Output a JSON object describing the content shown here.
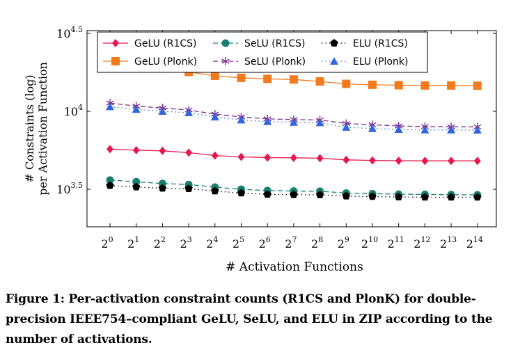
{
  "chart_data": {
    "type": "line",
    "xlabel": "# Activation Functions",
    "ylabel_lines": [
      "# Constraints (log)",
      "per Activation Function"
    ],
    "yscale": "log",
    "ylim_log10": [
      3.3,
      4.5
    ],
    "y_ticks": [
      {
        "log10": 3.5,
        "base": "10",
        "exp": "3.5"
      },
      {
        "log10": 4.0,
        "base": "10",
        "exp": "4"
      },
      {
        "log10": 4.5,
        "base": "10",
        "exp": "4.5"
      }
    ],
    "x_ticks": [
      {
        "base": "2",
        "exp": "0"
      },
      {
        "base": "2",
        "exp": "1"
      },
      {
        "base": "2",
        "exp": "2"
      },
      {
        "base": "2",
        "exp": "3"
      },
      {
        "base": "2",
        "exp": "4"
      },
      {
        "base": "2",
        "exp": "5"
      },
      {
        "base": "2",
        "exp": "6"
      },
      {
        "base": "2",
        "exp": "7"
      },
      {
        "base": "2",
        "exp": "8"
      },
      {
        "base": "2",
        "exp": "9"
      },
      {
        "base": "2",
        "exp": "10"
      },
      {
        "base": "2",
        "exp": "11"
      },
      {
        "base": "2",
        "exp": "12"
      },
      {
        "base": "2",
        "exp": "13"
      },
      {
        "base": "2",
        "exp": "14"
      }
    ],
    "x": [
      1,
      2,
      4,
      8,
      16,
      32,
      64,
      128,
      256,
      512,
      1024,
      2048,
      4096,
      8192,
      16384
    ],
    "legend_position": "top",
    "grid": false,
    "series": [
      {
        "name": "GeLU (R1CS)",
        "color": "#e8174f",
        "marker": "diamond",
        "dash": "solid",
        "values": [
          5720,
          5630,
          5580,
          5430,
          5200,
          5100,
          5050,
          5030,
          5000,
          4880,
          4840,
          4820,
          4810,
          4810,
          4810
        ]
      },
      {
        "name": "SeLU (R1CS)",
        "color": "#17806f",
        "marker": "circle",
        "dash": "dashed",
        "values": [
          3620,
          3530,
          3440,
          3390,
          3260,
          3160,
          3100,
          3080,
          3070,
          2990,
          2960,
          2940,
          2930,
          2920,
          2910
        ]
      },
      {
        "name": "ELU (R1CS)",
        "color": "#000000",
        "marker": "pentagon",
        "dash": "dotted",
        "values": [
          3340,
          3270,
          3210,
          3190,
          3080,
          2990,
          2930,
          2920,
          2910,
          2860,
          2840,
          2820,
          2810,
          2810,
          2810
        ]
      },
      {
        "name": "GeLU (Plonk)",
        "color": "#f47a1e",
        "marker": "square",
        "dash": "solid",
        "values": [
          19800,
          19300,
          19000,
          17900,
          16900,
          16400,
          16150,
          16000,
          15550,
          15000,
          14800,
          14700,
          14650,
          14650,
          14600
        ]
      },
      {
        "name": "SeLU (Plonk)",
        "color": "#7b2f8e",
        "marker": "star",
        "dash": "dashed",
        "values": [
          11300,
          10800,
          10500,
          10200,
          9600,
          9200,
          8950,
          8850,
          8800,
          8350,
          8200,
          8050,
          7980,
          7950,
          7950
        ]
      },
      {
        "name": "ELU (Plonk)",
        "color": "#3366dd",
        "marker": "triangle",
        "dash": "dotted",
        "values": [
          10700,
          10300,
          10000,
          9800,
          9200,
          8800,
          8600,
          8500,
          8450,
          7900,
          7750,
          7650,
          7600,
          7600,
          7580
        ]
      }
    ]
  },
  "caption": "Figure 1: Per-activation constraint counts (R1CS and PlonK) for double-precision IEEE754–compliant GeLU, SeLU, and ELU in ZIP according to the number of activations."
}
